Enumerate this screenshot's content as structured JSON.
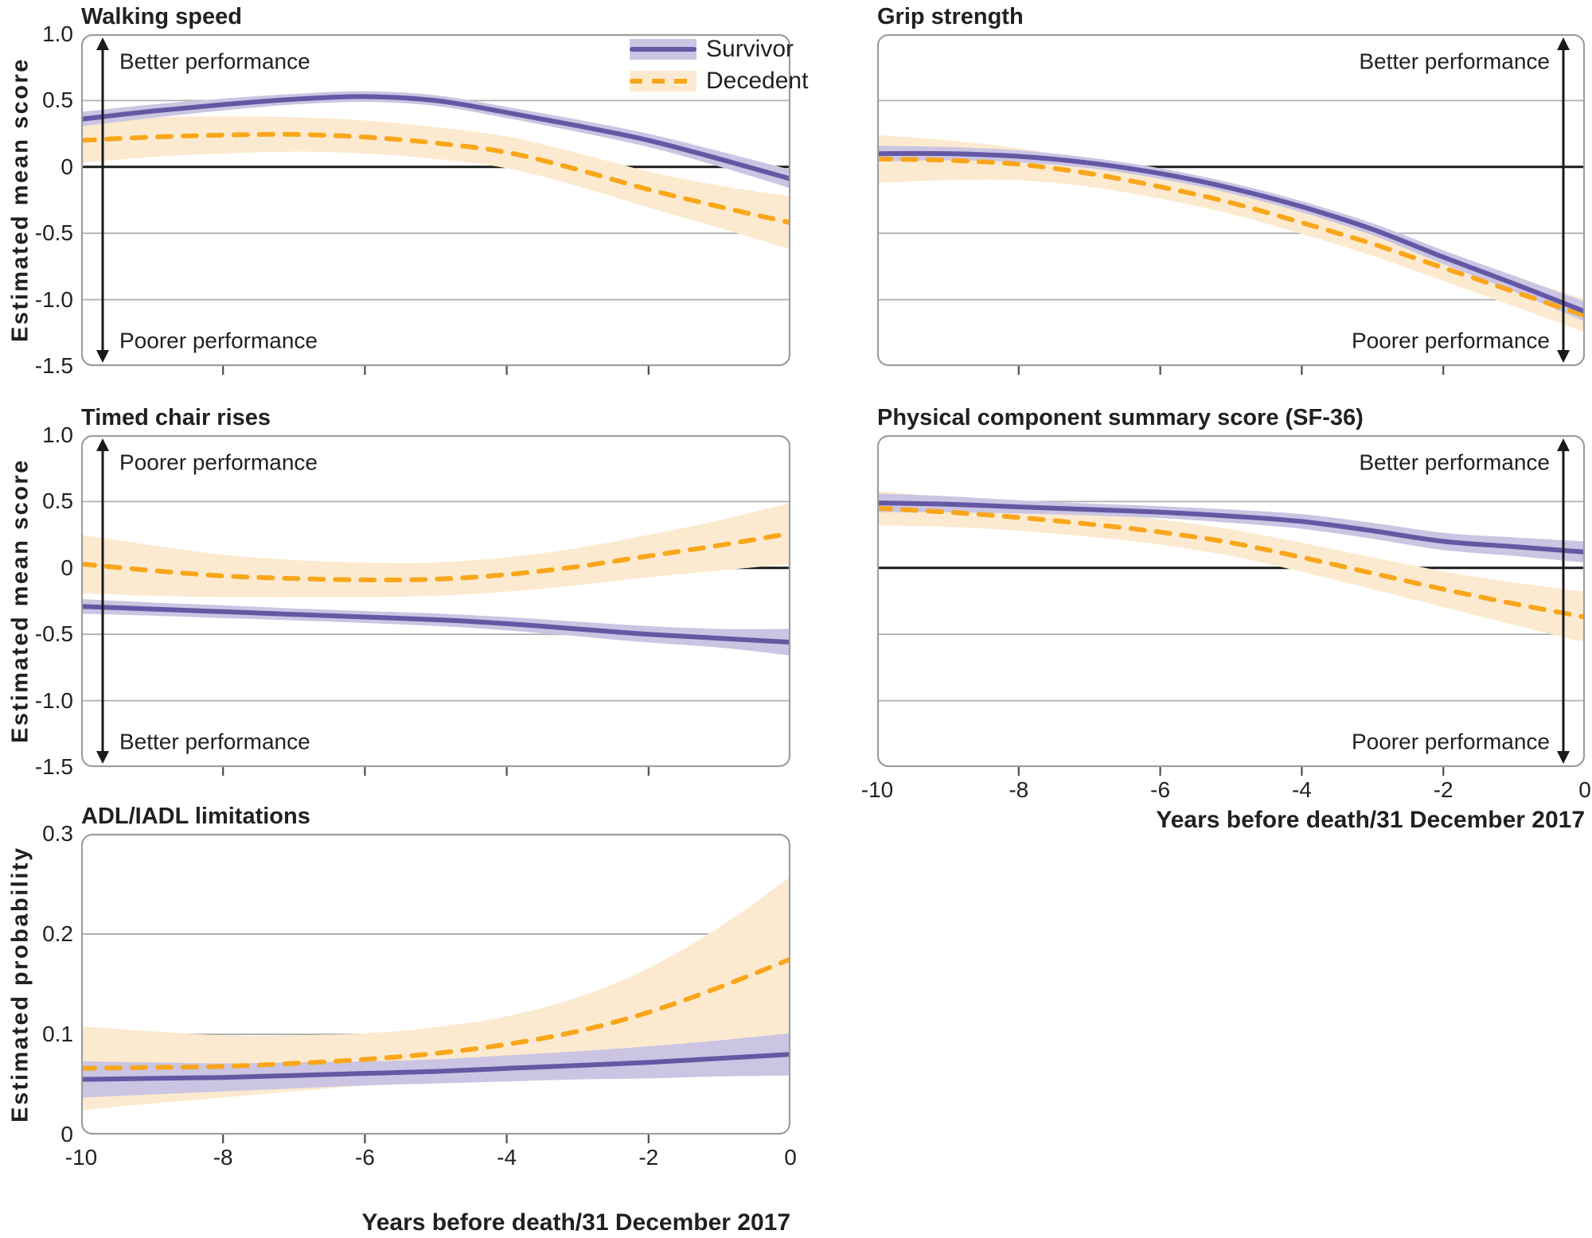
{
  "figure": {
    "x_axis_label": "Years before death/31 December 2017",
    "x_ticks": [
      {
        "v": -10,
        "label": "-10"
      },
      {
        "v": -8,
        "label": "-8"
      },
      {
        "v": -6,
        "label": "-6"
      },
      {
        "v": -4,
        "label": "-4"
      },
      {
        "v": -2,
        "label": "-2"
      },
      {
        "v": 0,
        "label": "0"
      }
    ],
    "legend": [
      {
        "id": "survivor",
        "label": "Survivor",
        "style": "solid"
      },
      {
        "id": "decedent",
        "label": "Decedent",
        "style": "dashed"
      }
    ]
  },
  "colors": {
    "survivor_line": "#6458a5",
    "survivor_band": "#cbc5e3",
    "decedent_line": "#f9a61b",
    "decedent_band": "#fcead0",
    "gridline": "#b0b0b0",
    "zero_line": "#1a1a1a",
    "panel_border": "#9e9e9e",
    "tick": "#4d4d4d",
    "text": "#231f20",
    "arrow": "#1a1a1a"
  },
  "chart_data": [
    {
      "type": "line",
      "title": "Walking speed",
      "ylabel": "Estimated mean score",
      "ylim": [
        -1.5,
        1.0
      ],
      "yticks": [
        {
          "v": 1.0,
          "label": "1.0"
        },
        {
          "v": 0.5,
          "label": "0.5"
        },
        {
          "v": 0,
          "label": "0"
        },
        {
          "v": -0.5,
          "label": "-0.5"
        },
        {
          "v": -1.0,
          "label": "-1.0"
        },
        {
          "v": -1.5,
          "label": "-1.5"
        }
      ],
      "show_y_labels": true,
      "show_x_labels": false,
      "annotations": {
        "top": "Better performance",
        "bottom": "Poorer performance",
        "arrow": "left"
      },
      "x": [
        -10,
        -9,
        -8,
        -7,
        -6,
        -5,
        -4,
        -3,
        -2,
        -1,
        0
      ],
      "series": [
        {
          "name": "Survivor",
          "values": [
            0.36,
            0.42,
            0.47,
            0.51,
            0.53,
            0.5,
            0.41,
            0.31,
            0.2,
            0.06,
            -0.09
          ],
          "ci": [
            0.055,
            0.05,
            0.045,
            0.04,
            0.04,
            0.04,
            0.042,
            0.046,
            0.05,
            0.058,
            0.07
          ]
        },
        {
          "name": "Decedent",
          "values": [
            0.2,
            0.225,
            0.24,
            0.245,
            0.225,
            0.18,
            0.11,
            -0.02,
            -0.17,
            -0.3,
            -0.42
          ],
          "ci": [
            0.17,
            0.15,
            0.14,
            0.13,
            0.125,
            0.12,
            0.12,
            0.125,
            0.135,
            0.16,
            0.2
          ]
        }
      ]
    },
    {
      "type": "line",
      "title": "Grip strength",
      "ylabel": "",
      "ylim": [
        -1.5,
        1.0
      ],
      "yticks": [
        {
          "v": 1.0,
          "label": "1.0"
        },
        {
          "v": 0.5,
          "label": "0.5"
        },
        {
          "v": 0,
          "label": "0"
        },
        {
          "v": -0.5,
          "label": "-0.5"
        },
        {
          "v": -1.0,
          "label": "-1.0"
        },
        {
          "v": -1.5,
          "label": "-1.5"
        }
      ],
      "show_y_labels": false,
      "show_x_labels": false,
      "annotations": {
        "top": "Better performance",
        "bottom": "Poorer performance",
        "arrow": "right"
      },
      "x": [
        -10,
        -9,
        -8,
        -7,
        -6,
        -5,
        -4,
        -3,
        -2,
        -1,
        0
      ],
      "series": [
        {
          "name": "Survivor",
          "values": [
            0.1,
            0.1,
            0.08,
            0.03,
            -0.05,
            -0.16,
            -0.3,
            -0.47,
            -0.68,
            -0.88,
            -1.09
          ],
          "ci": [
            0.06,
            0.05,
            0.045,
            0.04,
            0.04,
            0.04,
            0.042,
            0.046,
            0.052,
            0.06,
            0.075
          ]
        },
        {
          "name": "Decedent",
          "values": [
            0.06,
            0.05,
            0.02,
            -0.05,
            -0.15,
            -0.27,
            -0.42,
            -0.58,
            -0.76,
            -0.94,
            -1.12
          ],
          "ci": [
            0.18,
            0.15,
            0.12,
            0.1,
            0.09,
            0.085,
            0.085,
            0.09,
            0.1,
            0.11,
            0.125
          ]
        }
      ]
    },
    {
      "type": "line",
      "title": "Timed chair rises",
      "ylabel": "Estimated mean score",
      "ylim": [
        -1.5,
        1.0
      ],
      "yticks": [
        {
          "v": 1.0,
          "label": "1.0"
        },
        {
          "v": 0.5,
          "label": "0.5"
        },
        {
          "v": 0,
          "label": "0"
        },
        {
          "v": -0.5,
          "label": "-0.5"
        },
        {
          "v": -1.0,
          "label": "-1.0"
        },
        {
          "v": -1.5,
          "label": "-1.5"
        }
      ],
      "show_y_labels": true,
      "show_x_labels": false,
      "annotations": {
        "top": "Poorer performance",
        "bottom": "Better performance",
        "arrow": "left"
      },
      "x": [
        -10,
        -9,
        -8,
        -7,
        -6,
        -5,
        -4,
        -3,
        -2,
        -1,
        0
      ],
      "series": [
        {
          "name": "Survivor",
          "values": [
            -0.29,
            -0.31,
            -0.33,
            -0.35,
            -0.37,
            -0.39,
            -0.42,
            -0.46,
            -0.5,
            -0.53,
            -0.56
          ],
          "ci": [
            0.055,
            0.05,
            0.048,
            0.045,
            0.045,
            0.047,
            0.05,
            0.055,
            0.062,
            0.07,
            0.1
          ]
        },
        {
          "name": "Decedent",
          "values": [
            0.03,
            -0.02,
            -0.06,
            -0.08,
            -0.09,
            -0.085,
            -0.05,
            0.01,
            0.09,
            0.17,
            0.26
          ],
          "ci": [
            0.22,
            0.19,
            0.16,
            0.14,
            0.13,
            0.125,
            0.13,
            0.14,
            0.16,
            0.19,
            0.23
          ]
        }
      ]
    },
    {
      "type": "line",
      "title": "Physical component summary score (SF-36)",
      "ylabel": "",
      "ylim": [
        -1.5,
        1.0
      ],
      "yticks": [
        {
          "v": 1.0,
          "label": "1.0"
        },
        {
          "v": 0.5,
          "label": "0.5"
        },
        {
          "v": 0,
          "label": "0"
        },
        {
          "v": -0.5,
          "label": "-0.5"
        },
        {
          "v": -1.0,
          "label": "-1.0"
        },
        {
          "v": -1.5,
          "label": "-1.5"
        }
      ],
      "show_y_labels": false,
      "show_x_labels": true,
      "annotations": {
        "top": "Better performance",
        "bottom": "Poorer performance",
        "arrow": "right"
      },
      "x": [
        -10,
        -9,
        -8,
        -7,
        -6,
        -5,
        -4,
        -3,
        -2,
        -1,
        0
      ],
      "series": [
        {
          "name": "Survivor",
          "values": [
            0.49,
            0.48,
            0.46,
            0.44,
            0.42,
            0.39,
            0.35,
            0.28,
            0.2,
            0.16,
            0.12
          ],
          "ci": [
            0.07,
            0.06,
            0.05,
            0.045,
            0.045,
            0.05,
            0.055,
            0.06,
            0.065,
            0.07,
            0.08
          ]
        },
        {
          "name": "Decedent",
          "values": [
            0.45,
            0.42,
            0.38,
            0.33,
            0.27,
            0.19,
            0.08,
            -0.04,
            -0.16,
            -0.27,
            -0.37
          ],
          "ci": [
            0.13,
            0.11,
            0.1,
            0.095,
            0.095,
            0.1,
            0.11,
            0.12,
            0.135,
            0.16,
            0.19
          ]
        }
      ]
    },
    {
      "type": "line",
      "title": "ADL/IADL limitations",
      "ylabel": "Estimated probability",
      "ylim": [
        0,
        0.3
      ],
      "yticks": [
        {
          "v": 0.3,
          "label": "0.3"
        },
        {
          "v": 0.2,
          "label": "0.2"
        },
        {
          "v": 0.1,
          "label": "0.1"
        },
        {
          "v": 0,
          "label": "0"
        }
      ],
      "show_y_labels": true,
      "show_x_labels": true,
      "annotations": null,
      "x": [
        -10,
        -9,
        -8,
        -7,
        -6,
        -5,
        -4,
        -3,
        -2,
        -1,
        0
      ],
      "series": [
        {
          "name": "Survivor",
          "values": [
            0.055,
            0.056,
            0.057,
            0.059,
            0.061,
            0.063,
            0.066,
            0.069,
            0.072,
            0.076,
            0.08
          ],
          "ci": [
            0.018,
            0.016,
            0.014,
            0.013,
            0.012,
            0.012,
            0.013,
            0.014,
            0.016,
            0.018,
            0.021
          ]
        },
        {
          "name": "Decedent",
          "values": [
            0.066,
            0.067,
            0.068,
            0.071,
            0.075,
            0.081,
            0.09,
            0.103,
            0.122,
            0.147,
            0.175
          ],
          "ci": [
            0.042,
            0.036,
            0.031,
            0.028,
            0.026,
            0.026,
            0.028,
            0.034,
            0.044,
            0.06,
            0.082
          ]
        }
      ]
    }
  ]
}
